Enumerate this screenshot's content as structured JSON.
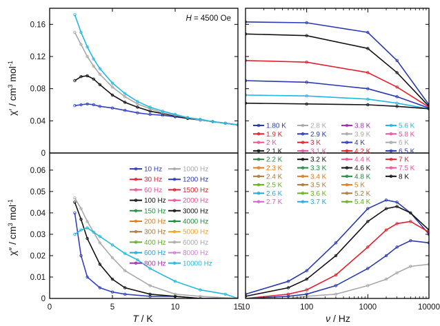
{
  "chart_data": [
    {
      "panel": "top-left",
      "type": "line",
      "xlabel_italic": "T",
      "xlabel_rest": " / K",
      "ylabel_prefix": "χ′ / cm",
      "ylabel_sup1": "3",
      "ylabel_mid": " mol",
      "ylabel_sup2": "-1",
      "annotation_italic": "H",
      "annotation_rest": " = 4500 Oe",
      "xlim": [
        0,
        15
      ],
      "ylim": [
        0,
        0.18
      ],
      "yticks": [
        "0",
        "0.04",
        "0.08",
        "0.12",
        "0.16"
      ],
      "ytick_values": [
        0,
        0.04,
        0.08,
        0.12,
        0.16
      ],
      "xticks": [
        0,
        5,
        10,
        15
      ],
      "series_note": "one curve per frequency (same as legend of bottom-left panel)",
      "series": [
        {
          "freq": "10 Hz",
          "x": [
            2,
            2.5,
            3,
            3.5,
            4,
            5,
            6,
            7,
            8,
            9,
            10,
            11,
            12,
            13,
            14,
            15
          ],
          "y": [
            0.059,
            0.06,
            0.061,
            0.06,
            0.058,
            0.056,
            0.053,
            0.05,
            0.048,
            0.047,
            0.045,
            0.043,
            0.041,
            0.039,
            0.037,
            0.035
          ]
        },
        {
          "freq": "100 Hz",
          "x": [
            2,
            2.5,
            3,
            3.5,
            4,
            5,
            6,
            7,
            8,
            9,
            10,
            11,
            12,
            13,
            14,
            15
          ],
          "y": [
            0.09,
            0.095,
            0.096,
            0.092,
            0.085,
            0.072,
            0.063,
            0.057,
            0.052,
            0.049,
            0.046,
            0.043,
            0.041,
            0.039,
            0.037,
            0.035
          ]
        },
        {
          "freq": "1000 Hz",
          "x": [
            2,
            2.5,
            3,
            3.5,
            4,
            5,
            6,
            7,
            8,
            9,
            10,
            11,
            12,
            13,
            14,
            15
          ],
          "y": [
            0.15,
            0.135,
            0.12,
            0.108,
            0.098,
            0.082,
            0.07,
            0.061,
            0.055,
            0.05,
            0.047,
            0.044,
            0.041,
            0.039,
            0.037,
            0.035
          ]
        },
        {
          "freq": "10000 Hz",
          "x": [
            2,
            2.5,
            3,
            3.5,
            4,
            5,
            6,
            7,
            8,
            9,
            10,
            11,
            12,
            13,
            14,
            15
          ],
          "y": [
            0.172,
            0.15,
            0.132,
            0.117,
            0.105,
            0.087,
            0.074,
            0.064,
            0.057,
            0.052,
            0.048,
            0.044,
            0.042,
            0.039,
            0.037,
            0.035
          ]
        }
      ]
    },
    {
      "panel": "bottom-left",
      "type": "line",
      "xlabel_italic": "T",
      "xlabel_rest": " / K",
      "ylabel_prefix": "χ″ / cm",
      "ylabel_sup1": "3",
      "ylabel_mid": " mol",
      "ylabel_sup2": "-1",
      "xlim": [
        0,
        15
      ],
      "ylim": [
        0,
        0.068
      ],
      "yticks": [
        "0",
        "0.01",
        "0.02",
        "0.03",
        "0.04",
        "0.05",
        "0.06"
      ],
      "ytick_values": [
        0,
        0.01,
        0.02,
        0.03,
        0.04,
        0.05,
        0.06
      ],
      "xticks": [
        "0",
        "5",
        "10",
        "15"
      ],
      "xtick_values": [
        0,
        5,
        10,
        15
      ],
      "series": [
        {
          "freq": "10 Hz",
          "x": [
            2,
            2.5,
            3,
            4,
            5,
            6,
            8,
            10,
            12,
            15
          ],
          "y": [
            0.04,
            0.02,
            0.01,
            0.005,
            0.003,
            0.002,
            0.001,
            0.001,
            0.0,
            0.0
          ]
        },
        {
          "freq": "100 Hz",
          "x": [
            2,
            2.5,
            3,
            4,
            5,
            6,
            8,
            10,
            12,
            15
          ],
          "y": [
            0.045,
            0.037,
            0.028,
            0.016,
            0.009,
            0.005,
            0.002,
            0.001,
            0.0,
            0.0
          ]
        },
        {
          "freq": "1000 Hz",
          "x": [
            2,
            2.5,
            3,
            4,
            5,
            6,
            8,
            10,
            12,
            15
          ],
          "y": [
            0.047,
            0.042,
            0.036,
            0.026,
            0.019,
            0.013,
            0.006,
            0.002,
            0.001,
            0.0
          ]
        },
        {
          "freq": "10000 Hz",
          "x": [
            2,
            2.5,
            3,
            3.5,
            4,
            5,
            6,
            7,
            8,
            10,
            12,
            14,
            15
          ],
          "y": [
            0.03,
            0.032,
            0.033,
            0.031,
            0.029,
            0.025,
            0.021,
            0.018,
            0.014,
            0.008,
            0.004,
            0.002,
            0.0
          ]
        }
      ]
    },
    {
      "panel": "top-right",
      "type": "line",
      "xscale": "log",
      "xlim": [
        10,
        10000
      ],
      "ylim": [
        0,
        0.18
      ],
      "series_note": "one curve per temperature (see legend); χ′ vs frequency",
      "series": [
        {
          "temp": "1.80 K",
          "x": [
            10,
            100,
            1000,
            3000,
            10000
          ],
          "y": [
            0.163,
            0.162,
            0.15,
            0.115,
            0.06
          ]
        },
        {
          "temp": "2.1 K",
          "x": [
            10,
            100,
            1000,
            3000,
            10000
          ],
          "y": [
            0.148,
            0.146,
            0.13,
            0.1,
            0.058
          ]
        },
        {
          "temp": "3 K",
          "x": [
            10,
            100,
            1000,
            3000,
            10000
          ],
          "y": [
            0.115,
            0.113,
            0.1,
            0.082,
            0.057
          ]
        },
        {
          "temp": "4 K",
          "x": [
            10,
            100,
            1000,
            3000,
            10000
          ],
          "y": [
            0.09,
            0.088,
            0.08,
            0.07,
            0.056
          ]
        },
        {
          "temp": "5.6 K",
          "x": [
            10,
            100,
            1000,
            3000,
            10000
          ],
          "y": [
            0.072,
            0.071,
            0.067,
            0.062,
            0.055
          ]
        },
        {
          "temp": "8 K",
          "x": [
            10,
            100,
            1000,
            3000,
            10000
          ],
          "y": [
            0.062,
            0.061,
            0.06,
            0.058,
            0.055
          ]
        }
      ]
    },
    {
      "panel": "bottom-right",
      "type": "line",
      "xscale": "log",
      "xlabel_italic": "ν",
      "xlabel_rest": " / Hz",
      "xlim": [
        10,
        10000
      ],
      "ylim": [
        0,
        0.068
      ],
      "xticks": [
        "10",
        "100",
        "1000",
        "10000"
      ],
      "xtick_values": [
        10,
        100,
        1000,
        10000
      ],
      "series_note": "one curve per temperature; χ″ vs frequency peaking near 2000-4000 Hz",
      "series": [
        {
          "temp": "1.80 K",
          "x": [
            10,
            50,
            100,
            300,
            1000,
            2000,
            3000,
            5000,
            10000
          ],
          "y": [
            0.002,
            0.008,
            0.013,
            0.026,
            0.042,
            0.046,
            0.045,
            0.04,
            0.03
          ]
        },
        {
          "temp": "2.1 K",
          "x": [
            10,
            50,
            100,
            300,
            1000,
            2000,
            3000,
            5000,
            10000
          ],
          "y": [
            0.001,
            0.005,
            0.009,
            0.02,
            0.036,
            0.042,
            0.043,
            0.04,
            0.032
          ]
        },
        {
          "temp": "3 K",
          "x": [
            10,
            50,
            100,
            300,
            1000,
            2000,
            3000,
            5000,
            10000
          ],
          "y": [
            0.0,
            0.002,
            0.004,
            0.011,
            0.024,
            0.032,
            0.035,
            0.036,
            0.031
          ]
        },
        {
          "temp": "4 K",
          "x": [
            10,
            50,
            100,
            300,
            1000,
            2000,
            3000,
            5000,
            10000
          ],
          "y": [
            0.0,
            0.001,
            0.002,
            0.006,
            0.014,
            0.02,
            0.024,
            0.027,
            0.026
          ]
        },
        {
          "temp": "6 K",
          "x": [
            10,
            50,
            100,
            300,
            1000,
            2000,
            3000,
            5000,
            10000
          ],
          "y": [
            0.0,
            0.0,
            0.001,
            0.002,
            0.006,
            0.009,
            0.012,
            0.015,
            0.016
          ]
        }
      ]
    }
  ],
  "freq_legend": [
    {
      "label": "10 Hz",
      "color": "#3040c0"
    },
    {
      "label": "1000 Hz",
      "color": "#a8a8a8"
    },
    {
      "label": "30 Hz",
      "color": "#e0202a"
    },
    {
      "label": "1200 Hz",
      "color": "#2838b0"
    },
    {
      "label": "60 Hz",
      "color": "#e8509a"
    },
    {
      "label": "1500 Hz",
      "color": "#e0202a"
    },
    {
      "label": "100 Hz",
      "color": "#111111"
    },
    {
      "label": "2000 Hz",
      "color": "#e8509a"
    },
    {
      "label": "150 Hz",
      "color": "#208a40"
    },
    {
      "label": "3000 Hz",
      "color": "#111111"
    },
    {
      "label": "200 Hz",
      "color": "#e07a1a"
    },
    {
      "label": "4000 Hz",
      "color": "#208a40"
    },
    {
      "label": "300 Hz",
      "color": "#a87838"
    },
    {
      "label": "5000 Hz",
      "color": "#f0a020"
    },
    {
      "label": "400 Hz",
      "color": "#60b020"
    },
    {
      "label": "6000 Hz",
      "color": "#a8a8a8"
    },
    {
      "label": "600 Hz",
      "color": "#20a8d8"
    },
    {
      "label": "8000 Hz",
      "color": "#d080d8"
    },
    {
      "label": "800 Hz",
      "color": "#a030b0"
    },
    {
      "label": "10000 Hz",
      "color": "#20b8e0"
    }
  ],
  "temp_legend": [
    {
      "label": "1.80 K",
      "color": "#2838b0"
    },
    {
      "label": "2.8 K",
      "color": "#a8a8a8"
    },
    {
      "label": "3.8 K",
      "color": "#a030b0"
    },
    {
      "label": "5.6 K",
      "color": "#20b8e0"
    },
    {
      "label": "1.9 K",
      "color": "#e0202a"
    },
    {
      "label": "2.9 K",
      "color": "#2838b0"
    },
    {
      "label": "3.9 K",
      "color": "#a8a8a8"
    },
    {
      "label": "5.8 K",
      "color": "#e8509a"
    },
    {
      "label": "2 K",
      "color": "#e8509a"
    },
    {
      "label": "3 K",
      "color": "#e0202a"
    },
    {
      "label": "4 K",
      "color": "#2838b0"
    },
    {
      "label": "6 K",
      "color": "#a8a8a8"
    },
    {
      "label": "2.1 K",
      "color": "#111111"
    },
    {
      "label": "3.1 K",
      "color": "#e8509a"
    },
    {
      "label": "4.2 K",
      "color": "#e0202a"
    },
    {
      "label": "6.5 K",
      "color": "#2838b0"
    },
    {
      "label": "2.2 K",
      "color": "#208a40"
    },
    {
      "label": "3.2 K",
      "color": "#111111"
    },
    {
      "label": "4.4 K",
      "color": "#e8509a"
    },
    {
      "label": "7 K",
      "color": "#e0202a"
    },
    {
      "label": "2.3 K",
      "color": "#e07a1a"
    },
    {
      "label": "3.3 K",
      "color": "#208a40"
    },
    {
      "label": "4.6 K",
      "color": "#111111"
    },
    {
      "label": "7.5 K",
      "color": "#e8509a"
    },
    {
      "label": "2.4 K",
      "color": "#a87838"
    },
    {
      "label": "3.4 K",
      "color": "#e07a1a"
    },
    {
      "label": "4.8 K",
      "color": "#208a40"
    },
    {
      "label": "8 K",
      "color": "#111111"
    },
    {
      "label": "2.5 K",
      "color": "#60b020"
    },
    {
      "label": "3.5 K",
      "color": "#a87838"
    },
    {
      "label": "5 K",
      "color": "#e07a1a"
    },
    {
      "label": "",
      "color": ""
    },
    {
      "label": "2.6 K",
      "color": "#20a8d8"
    },
    {
      "label": "3.6 K",
      "color": "#60b020"
    },
    {
      "label": "5.2 K",
      "color": "#a87838"
    },
    {
      "label": "",
      "color": ""
    },
    {
      "label": "2.7 K",
      "color": "#d060c8"
    },
    {
      "label": "3.7 K",
      "color": "#20a8d8"
    },
    {
      "label": "5.4 K",
      "color": "#60b020"
    },
    {
      "label": "",
      "color": ""
    }
  ]
}
